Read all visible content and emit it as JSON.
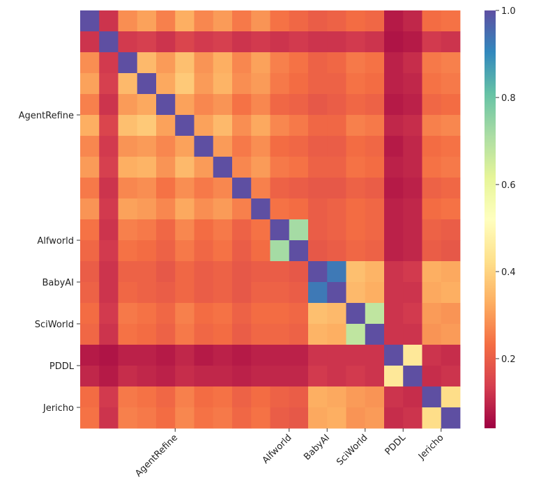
{
  "chart_data": {
    "type": "heatmap",
    "colormap": "Spectral",
    "xlim": [
      0,
      20
    ],
    "ylim": [
      0,
      20
    ],
    "xticks": [
      {
        "value": 5,
        "label": "AgentRefine"
      },
      {
        "value": 11,
        "label": "Alfworld"
      },
      {
        "value": 13,
        "label": "BabyAI"
      },
      {
        "value": 15,
        "label": "SciWorld"
      },
      {
        "value": 17,
        "label": "PDDL"
      },
      {
        "value": 19,
        "label": "Jericho"
      }
    ],
    "yticks": [
      {
        "value": 5,
        "label": "AgentRefine"
      },
      {
        "value": 11,
        "label": "Alfworld"
      },
      {
        "value": 13,
        "label": "BabyAI"
      },
      {
        "value": 15,
        "label": "SciWorld"
      },
      {
        "value": 17,
        "label": "PDDL"
      },
      {
        "value": 19,
        "label": "Jericho"
      }
    ],
    "zlim": [
      0.04,
      1.0
    ],
    "zticks": [
      0.2,
      0.4,
      0.6,
      0.8,
      {
        "value": 1,
        "label": "1.0"
      }
    ],
    "z": [
      [
        1.0,
        0.12,
        0.28,
        0.31,
        0.26,
        0.33,
        0.27,
        0.3,
        0.25,
        0.29,
        0.24,
        0.22,
        0.2,
        0.21,
        0.23,
        0.22,
        0.08,
        0.1,
        0.23,
        0.24
      ],
      [
        0.12,
        1.0,
        0.13,
        0.14,
        0.12,
        0.15,
        0.13,
        0.14,
        0.12,
        0.13,
        0.12,
        0.13,
        0.12,
        0.12,
        0.13,
        0.12,
        0.07,
        0.08,
        0.13,
        0.12
      ],
      [
        0.28,
        0.13,
        1.0,
        0.35,
        0.3,
        0.36,
        0.29,
        0.33,
        0.27,
        0.31,
        0.26,
        0.24,
        0.21,
        0.22,
        0.25,
        0.24,
        0.09,
        0.11,
        0.25,
        0.26
      ],
      [
        0.31,
        0.14,
        0.35,
        1.0,
        0.32,
        0.38,
        0.3,
        0.34,
        0.28,
        0.3,
        0.25,
        0.23,
        0.21,
        0.21,
        0.24,
        0.23,
        0.09,
        0.1,
        0.24,
        0.25
      ],
      [
        0.26,
        0.12,
        0.3,
        0.32,
        1.0,
        0.31,
        0.27,
        0.29,
        0.24,
        0.27,
        0.22,
        0.21,
        0.19,
        0.2,
        0.22,
        0.21,
        0.08,
        0.09,
        0.22,
        0.23
      ],
      [
        0.33,
        0.15,
        0.36,
        0.38,
        0.31,
        1.0,
        0.31,
        0.35,
        0.28,
        0.32,
        0.27,
        0.25,
        0.22,
        0.22,
        0.26,
        0.25,
        0.1,
        0.11,
        0.26,
        0.27
      ],
      [
        0.27,
        0.13,
        0.29,
        0.3,
        0.27,
        0.31,
        1.0,
        0.3,
        0.25,
        0.28,
        0.23,
        0.22,
        0.2,
        0.2,
        0.23,
        0.22,
        0.08,
        0.1,
        0.23,
        0.24
      ],
      [
        0.3,
        0.14,
        0.33,
        0.34,
        0.29,
        0.35,
        0.3,
        1.0,
        0.27,
        0.3,
        0.25,
        0.24,
        0.21,
        0.21,
        0.24,
        0.23,
        0.09,
        0.1,
        0.24,
        0.25
      ],
      [
        0.25,
        0.12,
        0.27,
        0.28,
        0.24,
        0.28,
        0.25,
        0.27,
        1.0,
        0.26,
        0.21,
        0.2,
        0.19,
        0.19,
        0.21,
        0.2,
        0.08,
        0.09,
        0.21,
        0.22
      ],
      [
        0.29,
        0.13,
        0.31,
        0.3,
        0.27,
        0.32,
        0.28,
        0.3,
        0.26,
        1.0,
        0.24,
        0.23,
        0.2,
        0.21,
        0.23,
        0.22,
        0.09,
        0.1,
        0.23,
        0.24
      ],
      [
        0.24,
        0.12,
        0.26,
        0.25,
        0.22,
        0.27,
        0.23,
        0.25,
        0.21,
        0.24,
        1.0,
        0.72,
        0.2,
        0.21,
        0.23,
        0.22,
        0.09,
        0.1,
        0.21,
        0.2
      ],
      [
        0.22,
        0.13,
        0.24,
        0.23,
        0.21,
        0.25,
        0.22,
        0.24,
        0.2,
        0.23,
        0.72,
        1.0,
        0.19,
        0.2,
        0.22,
        0.21,
        0.09,
        0.1,
        0.2,
        0.19
      ],
      [
        0.2,
        0.12,
        0.21,
        0.21,
        0.19,
        0.22,
        0.2,
        0.21,
        0.19,
        0.2,
        0.2,
        0.19,
        1.0,
        0.93,
        0.36,
        0.34,
        0.12,
        0.13,
        0.33,
        0.32
      ],
      [
        0.21,
        0.12,
        0.22,
        0.21,
        0.2,
        0.22,
        0.2,
        0.21,
        0.19,
        0.21,
        0.21,
        0.2,
        0.93,
        1.0,
        0.35,
        0.33,
        0.12,
        0.12,
        0.32,
        0.33
      ],
      [
        0.23,
        0.13,
        0.25,
        0.24,
        0.22,
        0.26,
        0.23,
        0.24,
        0.21,
        0.23,
        0.23,
        0.22,
        0.36,
        0.35,
        1.0,
        0.68,
        0.12,
        0.13,
        0.3,
        0.29
      ],
      [
        0.22,
        0.12,
        0.24,
        0.23,
        0.21,
        0.25,
        0.22,
        0.23,
        0.2,
        0.22,
        0.22,
        0.21,
        0.34,
        0.33,
        0.68,
        1.0,
        0.12,
        0.12,
        0.29,
        0.3
      ],
      [
        0.08,
        0.07,
        0.09,
        0.09,
        0.08,
        0.1,
        0.08,
        0.09,
        0.08,
        0.09,
        0.09,
        0.09,
        0.12,
        0.12,
        0.12,
        0.12,
        1.0,
        0.45,
        0.12,
        0.11
      ],
      [
        0.1,
        0.08,
        0.11,
        0.1,
        0.09,
        0.11,
        0.1,
        0.1,
        0.09,
        0.1,
        0.1,
        0.1,
        0.13,
        0.12,
        0.13,
        0.12,
        0.45,
        1.0,
        0.11,
        0.12
      ],
      [
        0.23,
        0.13,
        0.25,
        0.24,
        0.22,
        0.26,
        0.23,
        0.24,
        0.21,
        0.23,
        0.21,
        0.2,
        0.33,
        0.32,
        0.3,
        0.29,
        0.12,
        0.11,
        1.0,
        0.42
      ],
      [
        0.24,
        0.12,
        0.26,
        0.25,
        0.23,
        0.27,
        0.24,
        0.25,
        0.22,
        0.24,
        0.2,
        0.19,
        0.32,
        0.33,
        0.29,
        0.3,
        0.11,
        0.12,
        0.42,
        1.0
      ]
    ]
  }
}
